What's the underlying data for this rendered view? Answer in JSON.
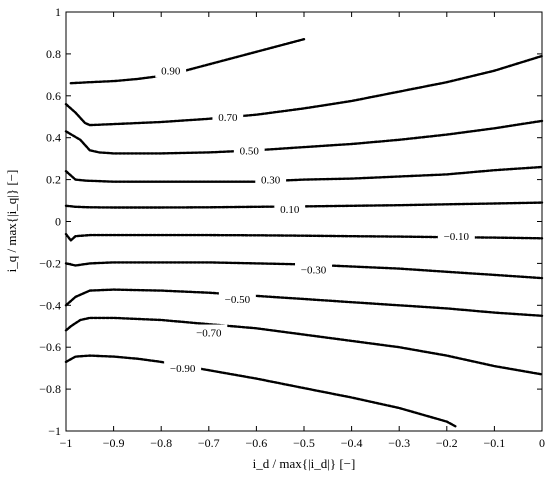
{
  "chart_data": {
    "type": "line",
    "title": "",
    "xlabel": "i_d / max{|i_d|} [−]",
    "ylabel": "i_q / max{|i_q|} [−]",
    "xlim": [
      -1,
      0
    ],
    "ylim": [
      -1,
      1
    ],
    "xticks": [
      -1,
      -0.9,
      -0.8,
      -0.7,
      -0.6,
      -0.5,
      -0.4,
      -0.3,
      -0.2,
      -0.1,
      0
    ],
    "yticks": [
      -1,
      -0.8,
      -0.6,
      -0.4,
      -0.2,
      0,
      0.2,
      0.4,
      0.6,
      0.8,
      1
    ],
    "xtick_labels": [
      "−1",
      "−0.9",
      "−0.8",
      "−0.7",
      "−0.6",
      "−0.5",
      "−0.4",
      "−0.3",
      "−0.2",
      "−0.1",
      "0"
    ],
    "ytick_labels": [
      "−1",
      "−0.8",
      "−0.6",
      "−0.4",
      "−0.2",
      "0",
      "0.2",
      "0.4",
      "0.6",
      "0.8",
      "1"
    ],
    "grid": false,
    "series": [
      {
        "label": "0.90",
        "label_at": [
          -0.78,
          0.72
        ],
        "x": [
          -0.99,
          -0.95,
          -0.9,
          -0.85,
          -0.8,
          -0.75,
          -0.7,
          -0.65,
          -0.6,
          -0.55,
          -0.5
        ],
        "y": [
          0.66,
          0.665,
          0.67,
          0.68,
          0.695,
          0.72,
          0.75,
          0.78,
          0.81,
          0.84,
          0.87
        ]
      },
      {
        "label": "0.70",
        "label_at": [
          -0.66,
          0.5
        ],
        "x": [
          -1.0,
          -0.98,
          -0.96,
          -0.95,
          -0.9,
          -0.8,
          -0.7,
          -0.6,
          -0.5,
          -0.4,
          -0.3,
          -0.2,
          -0.1,
          0.0
        ],
        "y": [
          0.56,
          0.52,
          0.47,
          0.46,
          0.465,
          0.475,
          0.49,
          0.51,
          0.54,
          0.575,
          0.62,
          0.665,
          0.72,
          0.79
        ]
      },
      {
        "label": "0.50",
        "label_at": [
          -0.615,
          0.34
        ],
        "x": [
          -1.0,
          -0.97,
          -0.95,
          -0.93,
          -0.9,
          -0.8,
          -0.7,
          -0.6,
          -0.5,
          -0.4,
          -0.3,
          -0.2,
          -0.1,
          0.0
        ],
        "y": [
          0.43,
          0.39,
          0.34,
          0.33,
          0.325,
          0.325,
          0.33,
          0.34,
          0.355,
          0.37,
          0.39,
          0.415,
          0.445,
          0.48
        ]
      },
      {
        "label": "0.30",
        "label_at": [
          -0.57,
          0.2
        ],
        "x": [
          -1.0,
          -0.98,
          -0.96,
          -0.9,
          -0.8,
          -0.7,
          -0.6,
          -0.5,
          -0.4,
          -0.3,
          -0.2,
          -0.1,
          0.0
        ],
        "y": [
          0.24,
          0.2,
          0.195,
          0.19,
          0.19,
          0.19,
          0.19,
          0.2,
          0.205,
          0.215,
          0.225,
          0.245,
          0.26
        ]
      },
      {
        "label": "0.10",
        "label_at": [
          -0.53,
          0.06
        ],
        "x": [
          -1.0,
          -0.98,
          -0.95,
          -0.9,
          -0.8,
          -0.7,
          -0.6,
          -0.5,
          -0.4,
          -0.3,
          -0.2,
          -0.1,
          0.0
        ],
        "y": [
          0.075,
          0.07,
          0.068,
          0.067,
          0.067,
          0.068,
          0.07,
          0.072,
          0.075,
          0.078,
          0.082,
          0.086,
          0.09
        ]
      },
      {
        "label": "−0.10",
        "label_at": [
          -0.18,
          -0.07
        ],
        "x": [
          -1.0,
          -0.99,
          -0.98,
          -0.95,
          -0.9,
          -0.8,
          -0.7,
          -0.6,
          -0.5,
          -0.4,
          -0.3,
          -0.2,
          -0.1,
          0.0
        ],
        "y": [
          -0.06,
          -0.09,
          -0.07,
          -0.065,
          -0.065,
          -0.065,
          -0.065,
          -0.066,
          -0.068,
          -0.07,
          -0.072,
          -0.075,
          -0.077,
          -0.08
        ]
      },
      {
        "label": "−0.30",
        "label_at": [
          -0.48,
          -0.23
        ],
        "x": [
          -1.0,
          -0.98,
          -0.95,
          -0.9,
          -0.8,
          -0.7,
          -0.6,
          -0.5,
          -0.4,
          -0.3,
          -0.2,
          -0.1,
          0.0
        ],
        "y": [
          -0.2,
          -0.21,
          -0.2,
          -0.195,
          -0.195,
          -0.195,
          -0.2,
          -0.205,
          -0.215,
          -0.225,
          -0.24,
          -0.255,
          -0.27
        ]
      },
      {
        "label": "−0.50",
        "label_at": [
          -0.64,
          -0.37
        ],
        "x": [
          -1.0,
          -0.98,
          -0.95,
          -0.9,
          -0.8,
          -0.7,
          -0.6,
          -0.5,
          -0.4,
          -0.3,
          -0.2,
          -0.1,
          0.0
        ],
        "y": [
          -0.4,
          -0.36,
          -0.33,
          -0.325,
          -0.33,
          -0.34,
          -0.355,
          -0.37,
          -0.385,
          -0.4,
          -0.415,
          -0.435,
          -0.45
        ]
      },
      {
        "label": "−0.70",
        "label_at": [
          -0.7,
          -0.53
        ],
        "x": [
          -1.0,
          -0.99,
          -0.97,
          -0.95,
          -0.9,
          -0.8,
          -0.7,
          -0.6,
          -0.5,
          -0.4,
          -0.3,
          -0.2,
          -0.1,
          0.0
        ],
        "y": [
          -0.52,
          -0.5,
          -0.47,
          -0.46,
          -0.46,
          -0.47,
          -0.49,
          -0.51,
          -0.54,
          -0.57,
          -0.6,
          -0.64,
          -0.69,
          -0.73
        ]
      },
      {
        "label": "−0.90",
        "label_at": [
          -0.755,
          -0.7
        ],
        "x": [
          -1.0,
          -0.98,
          -0.95,
          -0.9,
          -0.85,
          -0.8,
          -0.75,
          -0.7,
          -0.6,
          -0.5,
          -0.4,
          -0.3,
          -0.2,
          -0.18
        ],
        "y": [
          -0.67,
          -0.645,
          -0.64,
          -0.645,
          -0.655,
          -0.67,
          -0.69,
          -0.71,
          -0.75,
          -0.795,
          -0.84,
          -0.89,
          -0.955,
          -0.98
        ]
      }
    ]
  }
}
